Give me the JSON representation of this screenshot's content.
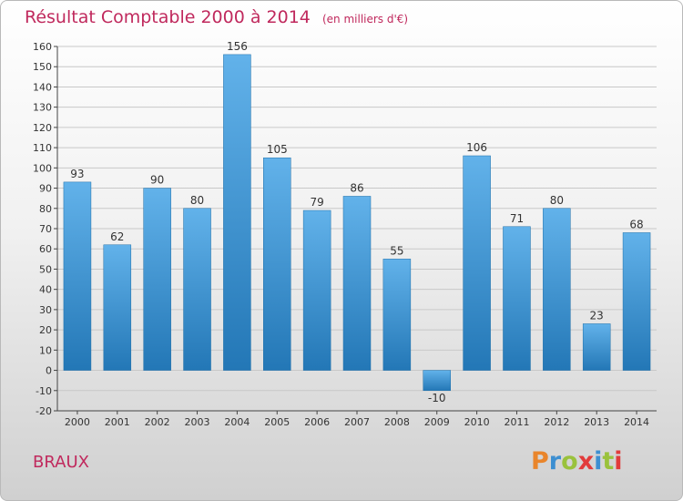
{
  "title": "Résultat Comptable 2000 à 2014",
  "unit": "(en milliers d'€)",
  "commune": "BRAUX",
  "logo": {
    "letters": [
      {
        "ch": "P",
        "color": "#e9852b"
      },
      {
        "ch": "r",
        "color": "#3d8fd1"
      },
      {
        "ch": "o",
        "color": "#9ac23c"
      },
      {
        "ch": "x",
        "color": "#e23b3b"
      },
      {
        "ch": "i",
        "color": "#3d8fd1"
      },
      {
        "ch": "t",
        "color": "#9ac23c"
      },
      {
        "ch": "i",
        "color": "#e23b3b"
      }
    ]
  },
  "colors": {
    "bar_light": "#62b2ea",
    "bar_dark": "#2377b6",
    "grid": "#c8c8c8",
    "axis": "#444444"
  },
  "chart_data": {
    "type": "bar",
    "title": "Résultat Comptable 2000 à 2014",
    "subtitle": "(en milliers d'€)",
    "xlabel": "",
    "ylabel": "",
    "ylim": [
      -20,
      160
    ],
    "ytick_step": 10,
    "grid": true,
    "categories": [
      "2000",
      "2001",
      "2002",
      "2003",
      "2004",
      "2005",
      "2006",
      "2007",
      "2008",
      "2009",
      "2010",
      "2011",
      "2012",
      "2013",
      "2014"
    ],
    "values": [
      93,
      62,
      90,
      80,
      156,
      105,
      79,
      86,
      55,
      -10,
      106,
      71,
      80,
      23,
      68
    ],
    "value_labels": [
      "93",
      "62",
      "90",
      "80",
      "156",
      "105",
      "79",
      "86",
      "55",
      "-10",
      "106",
      "71",
      "80",
      "23",
      "68"
    ]
  }
}
